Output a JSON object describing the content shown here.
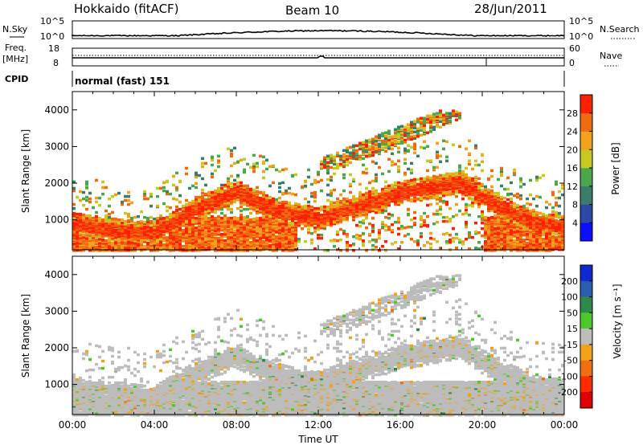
{
  "header": {
    "station": "Hokkaido (fitACF)",
    "beam": "Beam 10",
    "date": "28/Jun/2011"
  },
  "panels": {
    "nsky_label": "N.Sky",
    "nsky_ticks": [
      "10^5",
      "10^0"
    ],
    "nsearch_label": "N.Search",
    "freq_label": "Freq.",
    "freq_unit": "[MHz]",
    "freq_ticks": [
      "18",
      "8"
    ],
    "nave_label": "Nave",
    "nave_ticks": [
      "60",
      "0"
    ],
    "cpid_label": "CPID",
    "cpid_value": "normal (fast) 151"
  },
  "colors": {
    "power": [
      "#0a10ff",
      "#2b4aa8",
      "#3a7d6a",
      "#49a84a",
      "#c8c820",
      "#f2a21a",
      "#f06a10",
      "#ff2000"
    ],
    "velocity": [
      "#1028d0",
      "#2a5cb0",
      "#2e8a48",
      "#4cc828",
      "#bcbcbc",
      "#f2a21a",
      "#f07010",
      "#ff2a00",
      "#e00000"
    ],
    "ground_scatter": "#bcbcbc"
  },
  "chart_data": [
    {
      "type": "heatmap",
      "name": "power",
      "ylabel": "Slant Range [km]",
      "xlim": [
        "00:00",
        "24:00"
      ],
      "ylim": [
        180,
        4500
      ],
      "yticks": [
        "1000",
        "2000",
        "3000",
        "4000"
      ],
      "colorbar": {
        "label": "Power [dB]",
        "range": [
          0,
          32
        ],
        "ticks": [
          "4",
          "8",
          "12",
          "16",
          "20",
          "24",
          "28"
        ]
      },
      "ridge_km": [
        [
          0,
          900
        ],
        [
          2,
          750
        ],
        [
          4,
          650
        ],
        [
          6,
          1300
        ],
        [
          8,
          1800
        ],
        [
          10,
          1250
        ],
        [
          12,
          1050
        ],
        [
          14,
          1400
        ],
        [
          16,
          1750
        ],
        [
          18,
          1950
        ],
        [
          19,
          2050
        ],
        [
          20,
          1650
        ],
        [
          22,
          1050
        ],
        [
          24,
          800
        ]
      ]
    },
    {
      "type": "heatmap",
      "name": "velocity",
      "ylabel": "Slant Range [km]",
      "xlabel": "Time UT",
      "xlim": [
        "00:00",
        "24:00"
      ],
      "ylim": [
        180,
        4500
      ],
      "xticks": [
        "00:00",
        "04:00",
        "08:00",
        "12:00",
        "16:00",
        "20:00",
        "00:00"
      ],
      "yticks": [
        "1000",
        "2000",
        "3000",
        "4000"
      ],
      "colorbar": {
        "label": "Velocity [m s⁻¹]",
        "range": [
          -250,
          250
        ],
        "ticks": [
          "200",
          "100",
          "50",
          "15",
          "-15",
          "-50",
          "-100",
          "-200"
        ]
      }
    }
  ]
}
